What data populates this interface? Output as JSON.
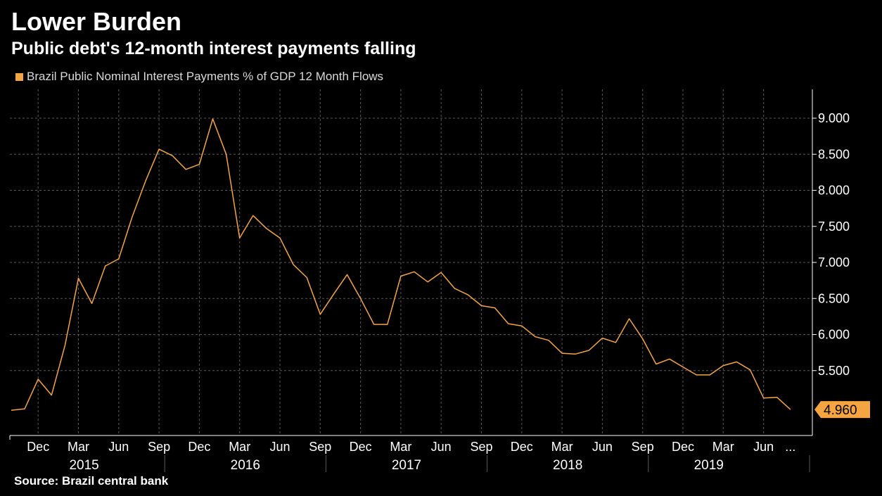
{
  "header": {
    "title": "Lower Burden",
    "subtitle": "Public debt's 12-month interest payments falling"
  },
  "legend": {
    "label": "Brazil Public Nominal Interest Payments % of GDP 12 Month Flows"
  },
  "source": "Source: Brazil central bank",
  "colors": {
    "background": "#000000",
    "series": "#f5a442",
    "grid": "#5a5a5a",
    "axis": "#ffffff",
    "text": "#ffffff",
    "legend_text": "#d9d9d9",
    "badge_text": "#000000"
  },
  "chart_data": {
    "type": "line",
    "title": "Lower Burden",
    "subtitle": "Public debt's 12-month interest payments falling",
    "xlabel": "",
    "ylabel": "",
    "x_start": "2015-10",
    "x_end": "2019-09",
    "ylim": [
      4.6,
      9.4
    ],
    "y_ticks": [
      5.5,
      6.0,
      6.5,
      7.0,
      7.5,
      8.0,
      8.5,
      9.0
    ],
    "y_tick_labels": [
      "5.500",
      "6.000",
      "6.500",
      "7.000",
      "7.500",
      "8.000",
      "8.500",
      "9.000"
    ],
    "grid": true,
    "legend_position": "top-left",
    "month_ticks": [
      {
        "label": "Dec",
        "index": 2
      },
      {
        "label": "Mar",
        "index": 5
      },
      {
        "label": "Jun",
        "index": 8
      },
      {
        "label": "Sep",
        "index": 11
      },
      {
        "label": "Dec",
        "index": 14
      },
      {
        "label": "Mar",
        "index": 17
      },
      {
        "label": "Jun",
        "index": 20
      },
      {
        "label": "Sep",
        "index": 23
      },
      {
        "label": "Dec",
        "index": 26
      },
      {
        "label": "Mar",
        "index": 29
      },
      {
        "label": "Jun",
        "index": 32
      },
      {
        "label": "Sep",
        "index": 35
      },
      {
        "label": "Dec",
        "index": 38
      },
      {
        "label": "Mar",
        "index": 41
      },
      {
        "label": "Jun",
        "index": 44
      },
      {
        "label": "Sep",
        "index": 47
      },
      {
        "label": "Dec",
        "index": 50
      },
      {
        "label": "Mar",
        "index": 53
      },
      {
        "label": "Jun",
        "index": 56
      },
      {
        "label": "...",
        "index": 58
      }
    ],
    "year_labels": [
      {
        "label": "2015",
        "start": 0,
        "end": 12
      },
      {
        "label": "2016",
        "start": 12,
        "end": 24
      },
      {
        "label": "2017",
        "start": 24,
        "end": 36
      },
      {
        "label": "2018",
        "start": 36,
        "end": 48
      },
      {
        "label": "2019",
        "start": 48,
        "end": 57
      }
    ],
    "year_separators": [
      12,
      24,
      36,
      48,
      60
    ],
    "series": [
      {
        "name": "Brazil Public Nominal Interest Payments % of GDP 12 Month Flows",
        "values": [
          4.95,
          4.97,
          5.38,
          5.16,
          5.85,
          6.78,
          6.43,
          6.95,
          7.05,
          7.63,
          8.13,
          8.57,
          8.48,
          8.29,
          8.36,
          8.99,
          8.5,
          7.34,
          7.65,
          7.47,
          7.34,
          6.97,
          6.79,
          6.28,
          6.56,
          6.83,
          6.5,
          6.14,
          6.14,
          6.81,
          6.87,
          6.73,
          6.86,
          6.64,
          6.55,
          6.4,
          6.37,
          6.15,
          6.12,
          5.97,
          5.92,
          5.74,
          5.73,
          5.78,
          5.95,
          5.89,
          6.22,
          5.94,
          5.59,
          5.66,
          5.55,
          5.44,
          5.44,
          5.57,
          5.62,
          5.51,
          5.12,
          5.13,
          4.96
        ]
      }
    ],
    "last_value_label": "4.960"
  }
}
